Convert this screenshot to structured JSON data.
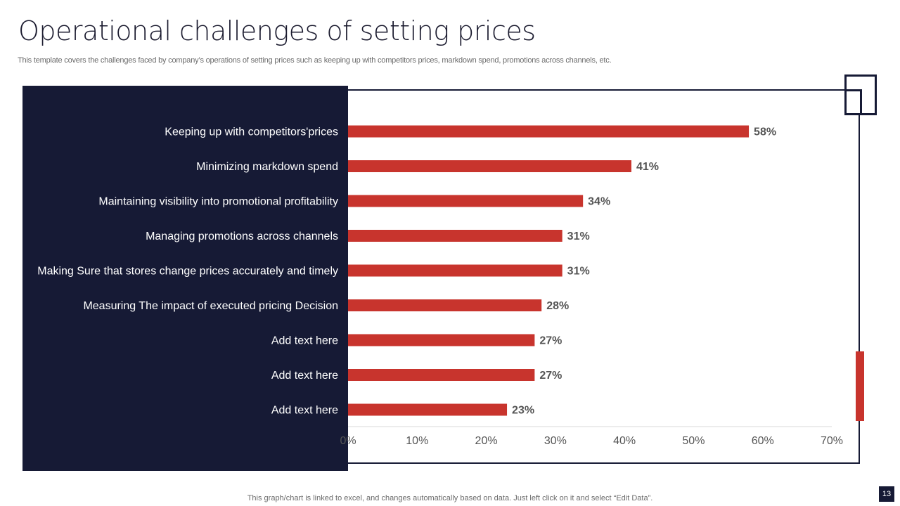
{
  "page": {
    "title": "Operational challenges of setting prices",
    "subtitle": "This template covers the challenges faced by company’s operations of setting prices such as keeping up with competitors prices, markdown spend, promotions across channels, etc.",
    "footer_note": "This graph/chart is linked to excel,  and changes automatically based on data. Just left click on it and select “Edit Data”.",
    "page_number": "13"
  },
  "colors": {
    "navy": "#161a35",
    "bar": "#c8342d",
    "value_text": "#555555"
  },
  "chart_data": {
    "type": "bar",
    "orientation": "horizontal",
    "categories": [
      "Keeping up with competitors'prices",
      "Minimizing markdown spend",
      "Maintaining visibility into promotional profitability",
      "Managing promotions across channels",
      "Making Sure that stores change prices accurately and timely",
      "Measuring The impact of executed pricing Decision",
      "Add text here",
      "Add text here",
      "Add text here"
    ],
    "values": [
      58,
      41,
      34,
      31,
      31,
      28,
      27,
      27,
      23
    ],
    "value_labels": [
      "58%",
      "41%",
      "34%",
      "31%",
      "31%",
      "28%",
      "27%",
      "27%",
      "23%"
    ],
    "xlim": [
      0,
      70
    ],
    "xticks": [
      "0%",
      "10%",
      "20%",
      "30%",
      "40%",
      "50%",
      "60%",
      "70%"
    ],
    "unit": "%",
    "grid": false
  }
}
